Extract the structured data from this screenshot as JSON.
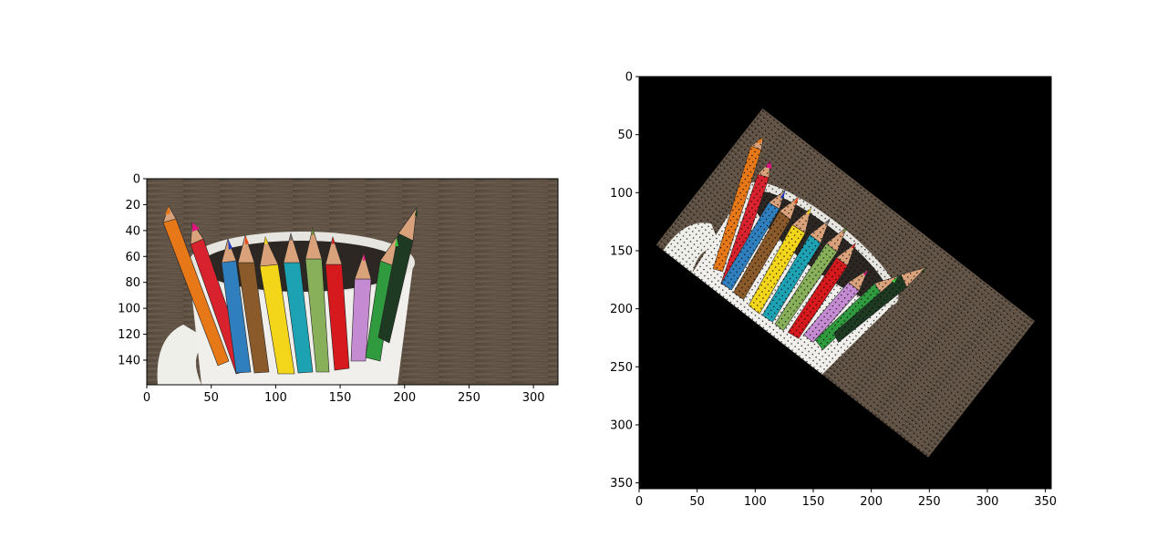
{
  "figure": {
    "background": "#ffffff"
  },
  "chart_data": [
    {
      "type": "image",
      "description": "original photo",
      "xlim": [
        0,
        319
      ],
      "ylim_inverted": [
        159,
        0
      ],
      "xticks": [
        0,
        50,
        100,
        150,
        200,
        250,
        300
      ],
      "yticks": [
        0,
        20,
        40,
        60,
        80,
        100,
        120,
        140
      ],
      "xtick_labels": [
        "0",
        "50",
        "100",
        "150",
        "200",
        "250",
        "300"
      ],
      "ytick_labels": [
        "0",
        "20",
        "40",
        "60",
        "80",
        "100",
        "120",
        "140"
      ],
      "image_size": {
        "width": 319,
        "height": 159
      },
      "colors": {
        "wood": "#6b5b4c",
        "wood_dark": "#3b3028",
        "cup": "#eeeeea"
      }
    },
    {
      "type": "image",
      "description": "rotated photo",
      "rotation_deg": -40,
      "xlim": [
        0,
        355
      ],
      "ylim_inverted": [
        355,
        0
      ],
      "xticks": [
        0,
        50,
        100,
        150,
        200,
        250,
        300,
        350
      ],
      "yticks": [
        0,
        50,
        100,
        150,
        200,
        250,
        300,
        350
      ],
      "xtick_labels": [
        "0",
        "50",
        "100",
        "150",
        "200",
        "250",
        "300",
        "350"
      ],
      "ytick_labels": [
        "0",
        "50",
        "100",
        "150",
        "200",
        "250",
        "300",
        "350"
      ],
      "image_size": {
        "width": 355,
        "height": 355
      },
      "colors": {
        "background": "#000000"
      }
    }
  ]
}
